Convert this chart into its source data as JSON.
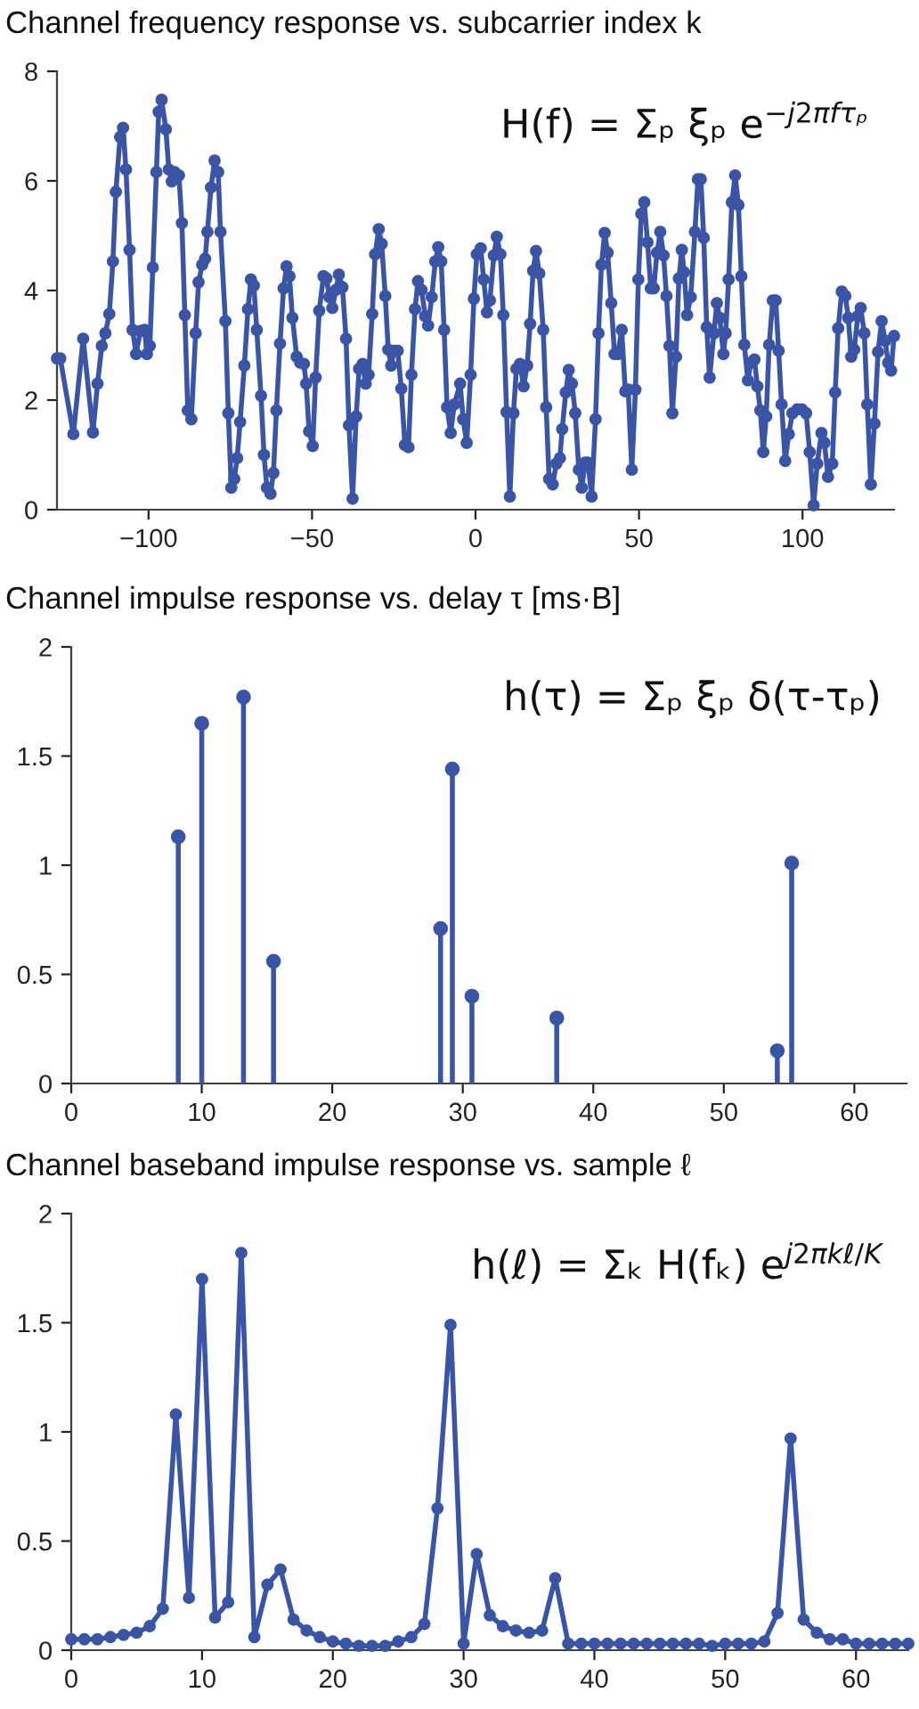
{
  "chart_data": [
    {
      "type": "line",
      "title": "Channel frequency response vs. subcarrier index k",
      "annotations": [
        "H(f) = Σₚ ξₚ e$^{−j2πfτₚ}$"
      ],
      "color": "#3a54a6",
      "marker": "circle",
      "grid": false,
      "legend": false,
      "x": [
        -128,
        -127,
        -123,
        -120,
        -117,
        -115.6,
        -114.3,
        -113.2,
        -112,
        -110.9,
        -110,
        -108.7,
        -107.8,
        -106.9,
        -105.8,
        -104.9,
        -103.8,
        -102.5,
        -101.2,
        -100.5,
        -99.6,
        -98.7,
        -97.6,
        -96.9,
        -96,
        -94.7,
        -93.8,
        -92.9,
        -92,
        -90.7,
        -89.8,
        -88.9,
        -88,
        -86.9,
        -85.6,
        -84.7,
        -83.6,
        -82.7,
        -82,
        -80.9,
        -79.8,
        -78.7,
        -78,
        -76.5,
        -75.6,
        -74.7,
        -73.8,
        -72.9,
        -72,
        -70.7,
        -69.6,
        -68.7,
        -67.8,
        -66.9,
        -65.6,
        -64.7,
        -63.8,
        -62.7,
        -61.8,
        -60.9,
        -59.8,
        -58.7,
        -57.8,
        -56.9,
        -56,
        -54.7,
        -53.6,
        -52.5,
        -51.8,
        -50.9,
        -49.8,
        -48.9,
        -47.8,
        -46.5,
        -45.6,
        -44.7,
        -43.8,
        -42.7,
        -41.8,
        -40.7,
        -39.6,
        -38.7,
        -37.6,
        -36.5,
        -35.6,
        -34.5,
        -33.6,
        -32.7,
        -31.6,
        -30.7,
        -29.6,
        -28.7,
        -27.6,
        -26.7,
        -25.8,
        -24.9,
        -23.8,
        -22.7,
        -21.6,
        -20.5,
        -19.6,
        -18.5,
        -17.6,
        -16.5,
        -15.4,
        -14.5,
        -13.4,
        -12.3,
        -11.4,
        -10.5,
        -9.6,
        -8.7,
        -7.6,
        -6.5,
        -4.7,
        -3.8,
        -2.7,
        -1.5,
        -0.5,
        0.4,
        1.6,
        2.5,
        3.5,
        4.4,
        5.6,
        6.5,
        7.6,
        8.5,
        9.5,
        10.5,
        11.6,
        12.5,
        13.6,
        14.7,
        15.8,
        16.7,
        17.6,
        18.5,
        19.5,
        20.7,
        21.6,
        22.5,
        23.6,
        24.7,
        25.8,
        26.5,
        27.6,
        28.5,
        29.5,
        30.5,
        31.6,
        32.5,
        33.5,
        34.4,
        35.5,
        36.7,
        37.6,
        38.5,
        39.5,
        40.4,
        41.5,
        42.5,
        43.5,
        44.7,
        45.8,
        46.7,
        47.8,
        48.9,
        49.8,
        50.7,
        51.6,
        52.6,
        53.6,
        54.5,
        55.5,
        56.5,
        57.5,
        58.4,
        59.3,
        60.2,
        61.3,
        62.2,
        63.1,
        63.8,
        64.7,
        65.8,
        67.1,
        68,
        68.9,
        69.8,
        70.7,
        71.6,
        72.9,
        73.8,
        74.7,
        75.8,
        76.5,
        77.4,
        78.4,
        79.4,
        80.4,
        81.3,
        82.2,
        83.3,
        84.2,
        85.3,
        86.2,
        87.1,
        88,
        88.9,
        89.8,
        90.9,
        91.8,
        92.7,
        93.6,
        94.7,
        95.8,
        96.9,
        98.4,
        99.8,
        101.1,
        102.2,
        103.4,
        104.5,
        105.8,
        106.7,
        107.8,
        109.1,
        110,
        110.9,
        112,
        113.1,
        114,
        114.9,
        115.8,
        116.9,
        117.8,
        118.9,
        119.8,
        120.9,
        122,
        123.1,
        124.2,
        125.3,
        126.2,
        127.1,
        128
      ],
      "values": [
        2.76,
        2.76,
        1.38,
        3.12,
        1.41,
        2.3,
        2.99,
        3.22,
        3.57,
        4.53,
        5.8,
        6.8,
        6.97,
        6.21,
        4.74,
        3.28,
        2.84,
        3.26,
        3.28,
        2.84,
        2.99,
        4.42,
        6.16,
        7.26,
        7.48,
        6.94,
        6.21,
        5.99,
        6.16,
        6.1,
        5.23,
        3.55,
        1.81,
        1.65,
        3.22,
        4.15,
        4.47,
        4.58,
        5.07,
        5.88,
        6.37,
        6.16,
        5.07,
        3.44,
        1.76,
        0.4,
        0.56,
        0.94,
        1.6,
        2.63,
        3.66,
        4.2,
        4.09,
        3.28,
        2.08,
        1.0,
        0.4,
        0.29,
        0.67,
        1.81,
        3.03,
        4.04,
        4.44,
        4.26,
        3.5,
        2.79,
        2.68,
        2.66,
        2.3,
        1.43,
        1.16,
        2.41,
        3.63,
        4.26,
        4.22,
        3.88,
        3.68,
        4.01,
        4.29,
        4.06,
        3.12,
        1.54,
        0.2,
        1.7,
        2.57,
        2.66,
        2.3,
        2.46,
        3.57,
        4.66,
        5.12,
        4.85,
        3.9,
        2.92,
        2.63,
        2.9,
        2.9,
        2.21,
        1.18,
        1.14,
        2.46,
        3.66,
        4.17,
        4.01,
        3.53,
        3.36,
        3.88,
        4.53,
        4.79,
        4.53,
        3.28,
        1.87,
        1.4,
        1.92,
        2.3,
        1.65,
        1.22,
        2.46,
        3.85,
        4.66,
        4.77,
        4.2,
        3.6,
        3.82,
        4.64,
        4.98,
        4.66,
        3.55,
        1.78,
        0.24,
        1.76,
        2.57,
        2.66,
        2.25,
        2.63,
        3.39,
        4.36,
        4.72,
        4.31,
        3.28,
        1.87,
        0.56,
        0.46,
        0.84,
        0.94,
        1.47,
        2.14,
        2.55,
        2.3,
        1.76,
        0.73,
        0.4,
        0.86,
        0.86,
        0.24,
        1.65,
        3.22,
        4.47,
        5.05,
        4.69,
        3.77,
        2.84,
        2.84,
        3.28,
        2.16,
        2.19,
        0.73,
        2.19,
        4.2,
        5.4,
        5.61,
        4.88,
        4.04,
        4.04,
        4.69,
        5.07,
        4.64,
        3.9,
        2.99,
        1.76,
        2.79,
        4.22,
        4.74,
        4.33,
        3.55,
        3.88,
        5.07,
        6.03,
        6.03,
        4.96,
        3.33,
        2.41,
        3.22,
        3.77,
        3.5,
        2.84,
        3.22,
        4.2,
        5.61,
        6.1,
        5.56,
        4.26,
        3.01,
        2.36,
        2.68,
        2.74,
        2.25,
        1.81,
        1.05,
        1.7,
        3.01,
        3.82,
        3.82,
        2.9,
        1.92,
        0.89,
        1.38,
        1.76,
        1.83,
        1.83,
        1.76,
        1.05,
        0.08,
        0.84,
        1.4,
        1.22,
        0.6,
        0.84,
        2.14,
        3.31,
        3.98,
        3.9,
        3.5,
        2.79,
        2.92,
        3.53,
        3.68,
        3.22,
        1.92,
        0.46,
        1.57,
        2.88,
        3.44,
        3.08,
        2.68,
        2.54,
        3.17
      ],
      "xlim": [
        -128,
        128
      ],
      "xticks": [
        -100,
        -50,
        0,
        50,
        100
      ],
      "ylim": [
        0,
        8
      ],
      "yticks": [
        0,
        2,
        4,
        6,
        8
      ]
    },
    {
      "type": "lollipop",
      "title": "Channel impulse response vs. delay τ [ms·B]",
      "annotations": [
        "h(τ) = Σₚ ξₚ δ(τ-τₚ)"
      ],
      "color": "#3a54a6",
      "marker": "circle",
      "grid": false,
      "legend": false,
      "x": [
        8.2,
        10.0,
        13.2,
        15.5,
        28.3,
        29.2,
        30.7,
        37.2,
        54.1,
        55.2
      ],
      "values": [
        1.13,
        1.65,
        1.77,
        0.56,
        0.71,
        1.44,
        0.4,
        0.3,
        0.15,
        1.01
      ],
      "xlim": [
        0,
        64
      ],
      "xticks": [
        0,
        10,
        20,
        30,
        40,
        50,
        60
      ],
      "ylim": [
        0,
        2
      ],
      "yticks": [
        0,
        0.5,
        1,
        1.5,
        2
      ]
    },
    {
      "type": "line",
      "title": "Channel baseband impulse response vs. sample ℓ",
      "annotations": [
        "h(ℓ) = Σₖ H(fₖ) e$^{j2πkℓ/K}$"
      ],
      "color": "#3a54a6",
      "marker": "circle",
      "grid": false,
      "legend": false,
      "x": [
        0,
        1,
        2,
        3,
        4,
        5,
        6,
        7,
        8,
        9,
        10,
        11,
        12,
        13,
        14,
        15,
        16,
        17,
        18,
        19,
        20,
        21,
        22,
        23,
        24,
        25,
        26,
        27,
        28,
        29,
        30,
        31,
        32,
        33,
        34,
        35,
        36,
        37,
        38,
        39,
        40,
        41,
        42,
        43,
        44,
        45,
        46,
        47,
        48,
        49,
        50,
        51,
        52,
        53,
        54,
        55,
        56,
        57,
        58,
        59,
        60,
        61,
        62,
        63,
        64
      ],
      "values": [
        0.05,
        0.05,
        0.05,
        0.06,
        0.07,
        0.08,
        0.11,
        0.19,
        1.08,
        0.24,
        1.7,
        0.15,
        0.22,
        1.82,
        0.06,
        0.3,
        0.37,
        0.14,
        0.09,
        0.06,
        0.04,
        0.03,
        0.02,
        0.02,
        0.02,
        0.04,
        0.06,
        0.12,
        0.65,
        1.49,
        0.03,
        0.44,
        0.16,
        0.11,
        0.09,
        0.08,
        0.09,
        0.33,
        0.03,
        0.03,
        0.03,
        0.03,
        0.03,
        0.03,
        0.03,
        0.03,
        0.03,
        0.03,
        0.03,
        0.02,
        0.03,
        0.03,
        0.03,
        0.04,
        0.17,
        0.97,
        0.14,
        0.08,
        0.05,
        0.05,
        0.03,
        0.03,
        0.03,
        0.03,
        0.03
      ],
      "xlim": [
        0,
        64
      ],
      "xticks": [
        0,
        10,
        20,
        30,
        40,
        50,
        60
      ],
      "ylim": [
        0,
        2
      ],
      "yticks": [
        0,
        0.5,
        1,
        1.5,
        2
      ]
    }
  ]
}
